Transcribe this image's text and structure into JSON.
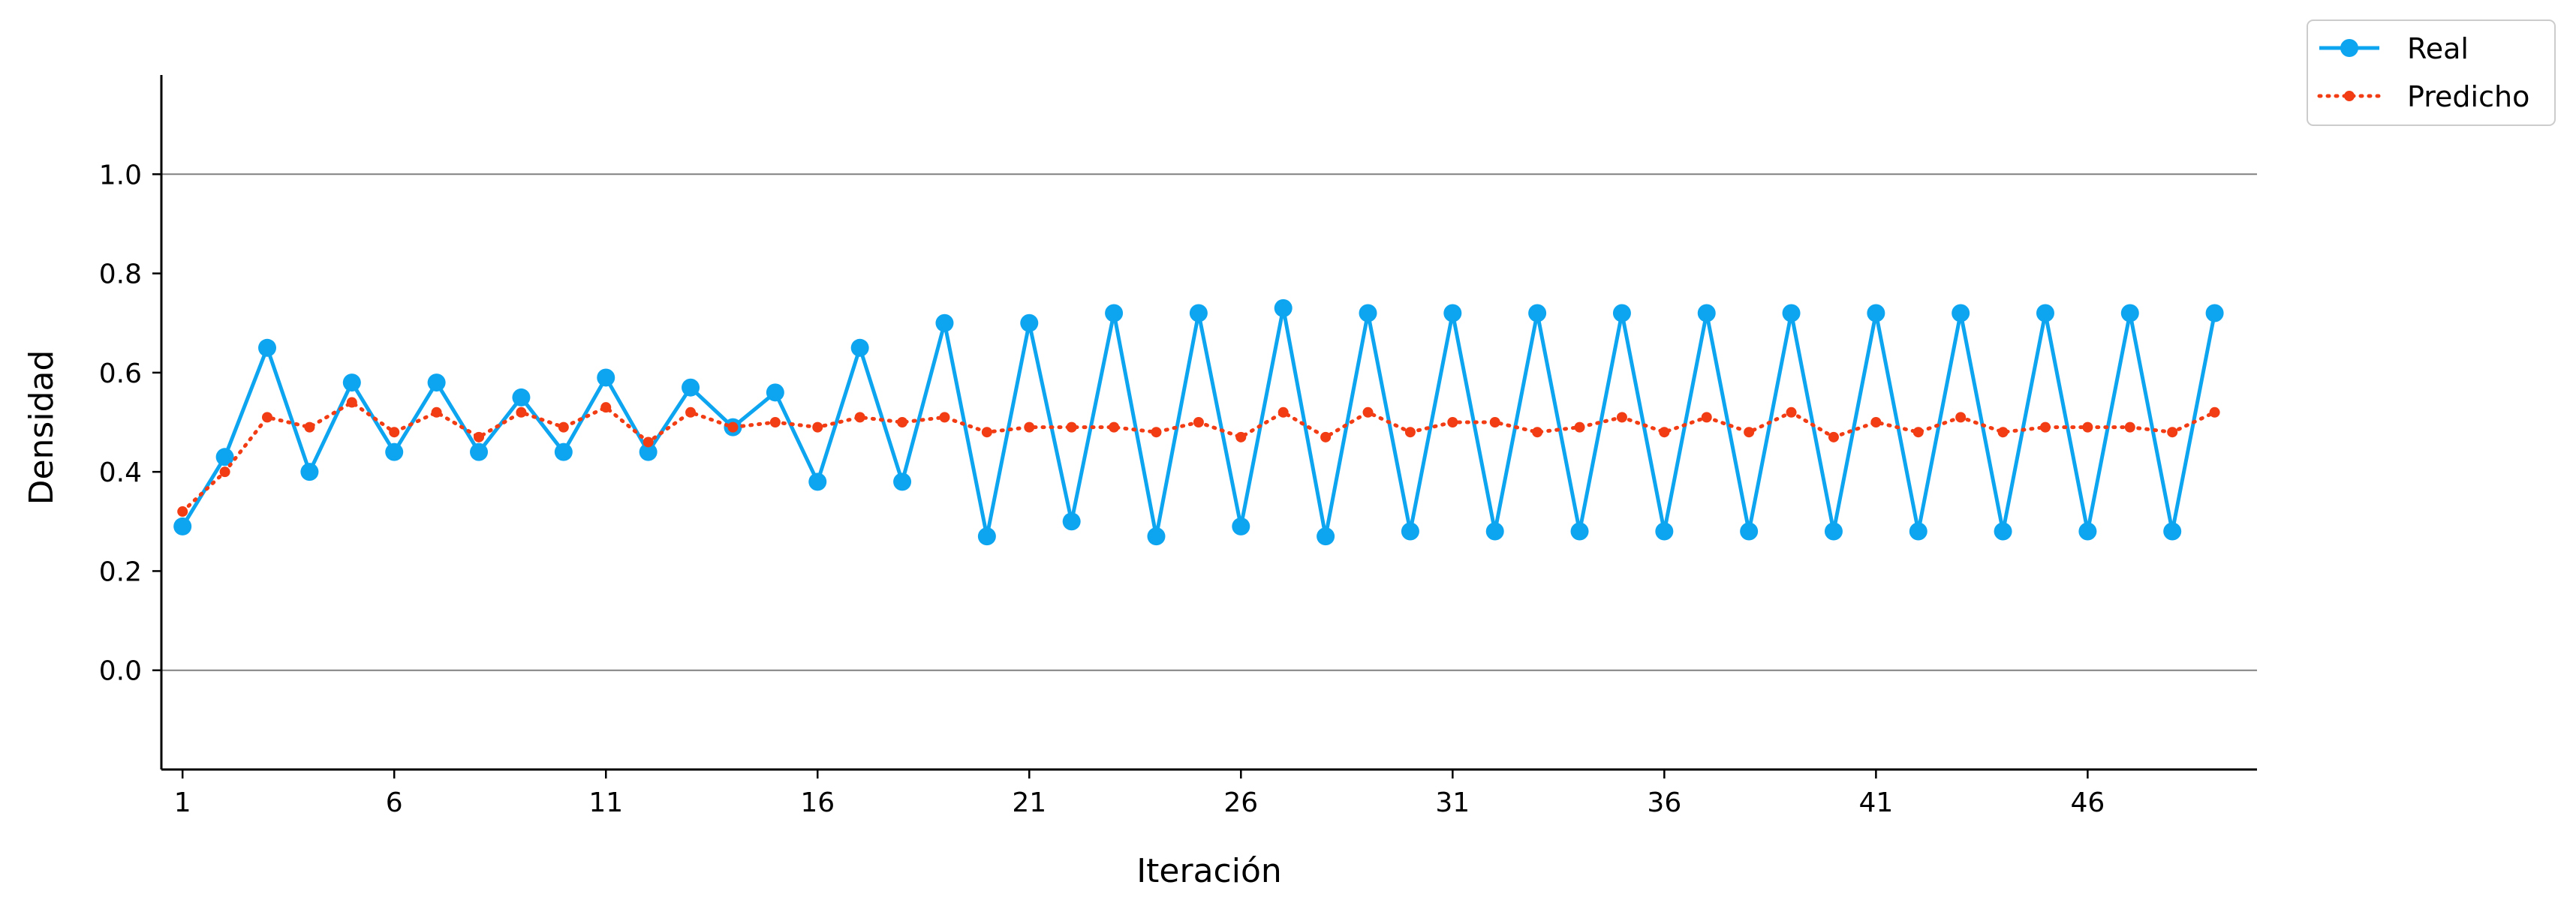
{
  "chart_data": {
    "type": "line",
    "title": "",
    "xlabel": "Iteración",
    "ylabel": "Densidad",
    "x": [
      1,
      2,
      3,
      4,
      5,
      6,
      7,
      8,
      9,
      10,
      11,
      12,
      13,
      14,
      15,
      16,
      17,
      18,
      19,
      20,
      21,
      22,
      23,
      24,
      25,
      26,
      27,
      28,
      29,
      30,
      31,
      32,
      33,
      34,
      35,
      36,
      37,
      38,
      39,
      40,
      41,
      42,
      43,
      44,
      45,
      46,
      47,
      48,
      49
    ],
    "xlim": [
      0.5,
      50.0
    ],
    "ylim": [
      -0.2,
      1.2
    ],
    "xticks": [
      1,
      6,
      11,
      16,
      21,
      26,
      31,
      36,
      41,
      46
    ],
    "xtick_labels": [
      "1",
      "6",
      "11",
      "16",
      "21",
      "26",
      "31",
      "36",
      "41",
      "46"
    ],
    "yticks": [
      0.0,
      0.2,
      0.4,
      0.6,
      0.8,
      1.0
    ],
    "ytick_labels": [
      "0.0",
      "0.2",
      "0.4",
      "0.6",
      "0.8",
      "1.0"
    ],
    "reference_lines_y": [
      0.0,
      1.0
    ],
    "grid": false,
    "legend_position": "outside-top-right",
    "series": [
      {
        "name": "Real",
        "color": "#0ea5f0",
        "line_style": "solid",
        "marker": "circle",
        "values": [
          0.29,
          0.43,
          0.65,
          0.4,
          0.58,
          0.44,
          0.58,
          0.44,
          0.55,
          0.44,
          0.59,
          0.44,
          0.57,
          0.49,
          0.56,
          0.38,
          0.65,
          0.38,
          0.7,
          0.27,
          0.7,
          0.3,
          0.72,
          0.27,
          0.72,
          0.29,
          0.73,
          0.27,
          0.72,
          0.28,
          0.72,
          0.28,
          0.72,
          0.28,
          0.72,
          0.28,
          0.72,
          0.28,
          0.72,
          0.28,
          0.72,
          0.28,
          0.72,
          0.28,
          0.72,
          0.28,
          0.72,
          0.28,
          0.72
        ]
      },
      {
        "name": "Predicho",
        "color": "#f23c14",
        "line_style": "dotted",
        "marker": "dot",
        "values": [
          0.32,
          0.4,
          0.51,
          0.49,
          0.54,
          0.48,
          0.52,
          0.47,
          0.52,
          0.49,
          0.53,
          0.46,
          0.52,
          0.49,
          0.5,
          0.49,
          0.51,
          0.5,
          0.51,
          0.48,
          0.49,
          0.49,
          0.49,
          0.48,
          0.5,
          0.47,
          0.52,
          0.47,
          0.52,
          0.48,
          0.5,
          0.5,
          0.48,
          0.49,
          0.51,
          0.48,
          0.51,
          0.48,
          0.52,
          0.47,
          0.5,
          0.48,
          0.51,
          0.48,
          0.49,
          0.49,
          0.49,
          0.48,
          0.52
        ]
      }
    ]
  }
}
